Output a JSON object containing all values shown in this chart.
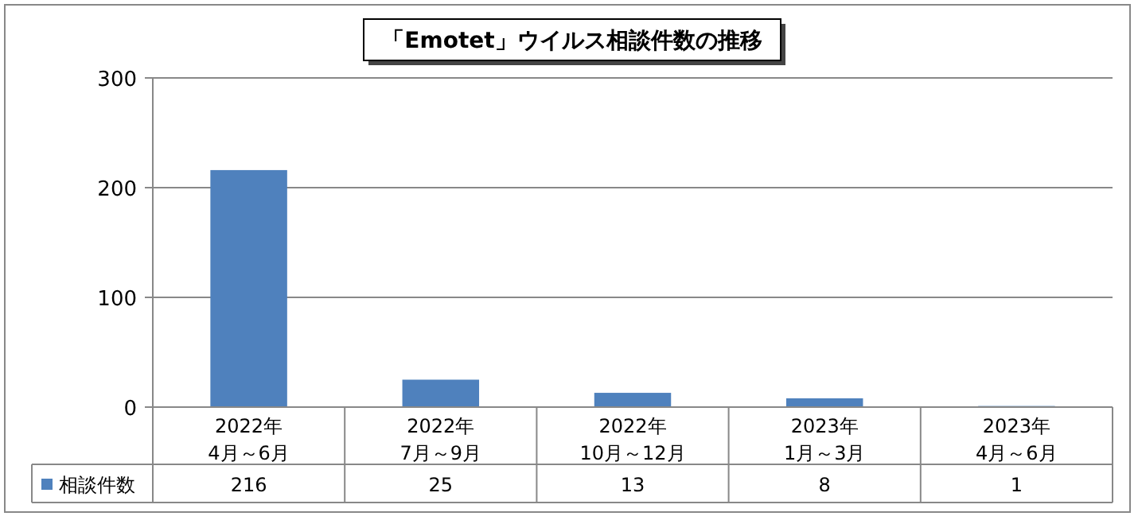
{
  "chart_data": {
    "type": "bar",
    "title": "「Emotet」ウイルス相談件数の推移",
    "categories": [
      "2022年\n4月～6月",
      "2022年\n7月～9月",
      "2022年\n10月～12月",
      "2023年\n1月～3月",
      "2023年\n4月～6月"
    ],
    "series": [
      {
        "name": "相談件数",
        "color": "#4f81bd",
        "values": [
          216,
          25,
          13,
          8,
          1
        ]
      }
    ],
    "ylim": [
      0,
      300
    ],
    "yticks": [
      0,
      100,
      200,
      300
    ],
    "grid": "y",
    "data_labels": true,
    "legend": "bottom left"
  }
}
